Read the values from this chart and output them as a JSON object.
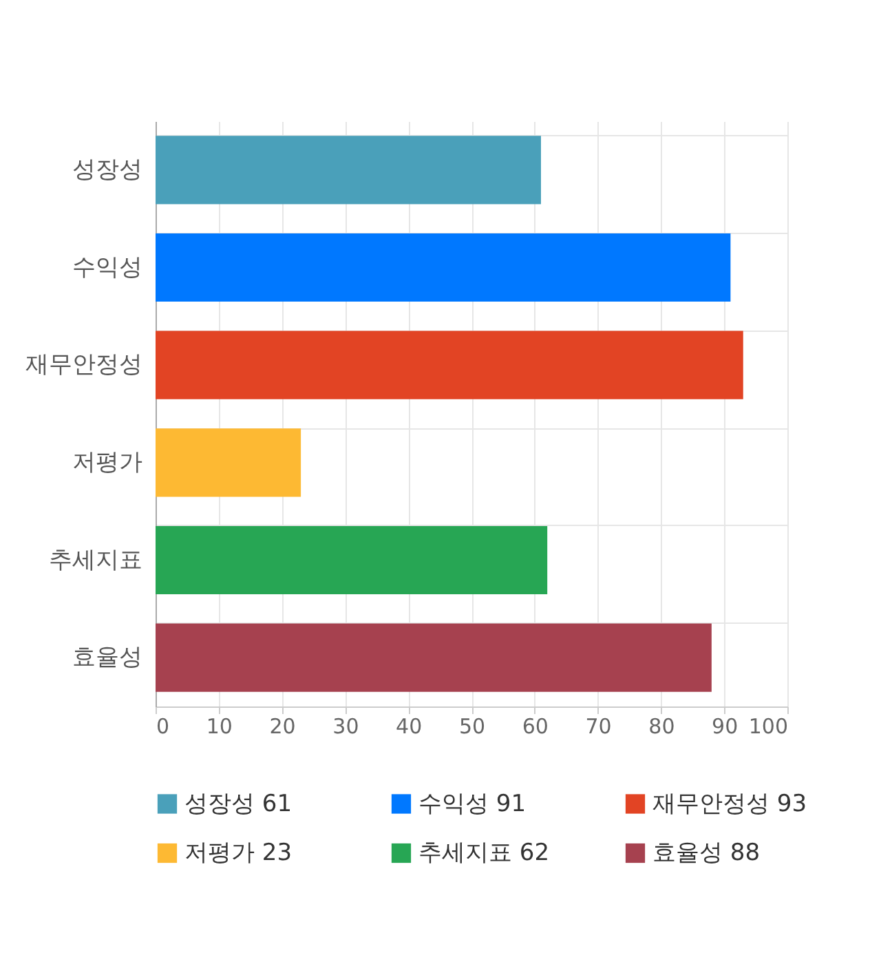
{
  "chart_data": {
    "type": "bar",
    "orientation": "horizontal",
    "categories": [
      "성장성",
      "수익성",
      "재무안정성",
      "저평가",
      "추세지표",
      "효율성"
    ],
    "series": [
      {
        "name": "성장성 61",
        "color": "#4aa0ba",
        "values": [
          61,
          null,
          null,
          null,
          null,
          null
        ]
      },
      {
        "name": "수익성 91",
        "color": "#0078ff",
        "values": [
          null,
          91,
          null,
          null,
          null,
          null
        ]
      },
      {
        "name": "재무안정성 93",
        "color": "#e24424",
        "values": [
          null,
          null,
          93,
          null,
          null,
          null
        ]
      },
      {
        "name": "저평가 23",
        "color": "#fdb933",
        "values": [
          null,
          null,
          null,
          23,
          null,
          null
        ]
      },
      {
        "name": "추세지표 62",
        "color": "#27a654",
        "values": [
          null,
          null,
          null,
          null,
          62,
          null
        ]
      },
      {
        "name": "효율성 88",
        "color": "#a6414f",
        "values": [
          null,
          null,
          null,
          null,
          null,
          88
        ]
      }
    ],
    "xlim": [
      0,
      100
    ],
    "xticks": [
      0,
      10,
      20,
      30,
      40,
      50,
      60,
      70,
      80,
      90,
      100
    ],
    "grid": true,
    "legend": "bottom"
  }
}
